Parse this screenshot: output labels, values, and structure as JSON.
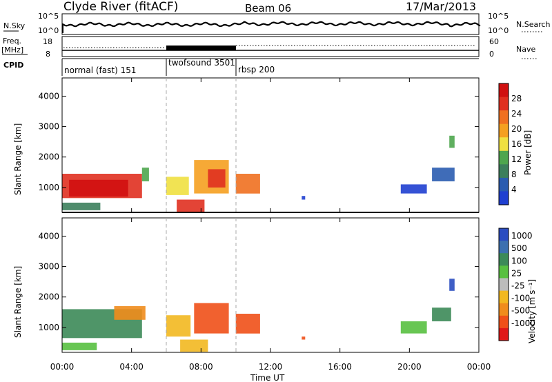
{
  "header": {
    "station": "Clyde River (fitACF)",
    "beam": "Beam 06",
    "date": "17/Mar/2013"
  },
  "noise_panel": {
    "left_label": "N.Sky",
    "right_label": "N.Search",
    "left_ticks": [
      "10^5",
      "10^0"
    ],
    "right_ticks": [
      "10^5",
      "10^0"
    ]
  },
  "freq_panel": {
    "left_label_1": "Freq.",
    "left_label_2": "[MHz]",
    "left_ticks": [
      "18",
      "8"
    ],
    "right_label": "Nave",
    "right_ticks": [
      "60",
      "0"
    ]
  },
  "cpid": {
    "label": "CPID",
    "modes": [
      {
        "name": "normal (fast) 151",
        "start": 0,
        "end": 6
      },
      {
        "name": "twofsound 3501",
        "start": 6,
        "end": 10
      },
      {
        "name": "rbsp 200",
        "start": 10,
        "end": 24
      }
    ]
  },
  "colors": {
    "power": [
      "#1f3fd0",
      "#2a5cb0",
      "#3c7f5c",
      "#4ea64e",
      "#f0e040",
      "#f5a020",
      "#f07020",
      "#e03020",
      "#d01010"
    ],
    "velocity": [
      "#e01818",
      "#f05018",
      "#f08c1c",
      "#f2b820",
      "#bcbcbc",
      "#58c040",
      "#3c8a58",
      "#3c70b0",
      "#2a4cc0"
    ],
    "trace": "#000000",
    "dashed": "#aaaaaa"
  },
  "chart_data": [
    {
      "type": "heatmap",
      "panel": "power",
      "xlabel": "",
      "ylabel": "Slant Range [km]",
      "xlim": [
        0,
        24
      ],
      "ylim": [
        180,
        4600
      ],
      "yticks": [
        "1000",
        "2000",
        "3000",
        "4000"
      ],
      "colorbar_label": "Power [dB]",
      "colorbar_ticks": [
        "4",
        "8",
        "12",
        "16",
        "20",
        "24",
        "28"
      ],
      "patches": [
        {
          "t0": 0.0,
          "t1": 4.6,
          "r0": 650,
          "r1": 1450,
          "level": 7
        },
        {
          "t0": 0.4,
          "t1": 3.8,
          "r0": 700,
          "r1": 1250,
          "level": 8
        },
        {
          "t0": 0.0,
          "t1": 2.2,
          "r0": 250,
          "r1": 500,
          "level": 2
        },
        {
          "t0": 4.6,
          "t1": 5.0,
          "r0": 1200,
          "r1": 1650,
          "level": 3
        },
        {
          "t0": 6.0,
          "t1": 7.3,
          "r0": 750,
          "r1": 1350,
          "level": 4
        },
        {
          "t0": 6.6,
          "t1": 8.2,
          "r0": 200,
          "r1": 600,
          "level": 7
        },
        {
          "t0": 7.6,
          "t1": 9.6,
          "r0": 800,
          "r1": 1900,
          "level": 5
        },
        {
          "t0": 8.4,
          "t1": 9.4,
          "r0": 1000,
          "r1": 1600,
          "level": 7
        },
        {
          "t0": 10.0,
          "t1": 11.4,
          "r0": 800,
          "r1": 1450,
          "level": 6
        },
        {
          "t0": 13.8,
          "t1": 14.0,
          "r0": 600,
          "r1": 720,
          "level": 0
        },
        {
          "t0": 19.5,
          "t1": 21.0,
          "r0": 800,
          "r1": 1100,
          "level": 0
        },
        {
          "t0": 21.3,
          "t1": 22.6,
          "r0": 1200,
          "r1": 1650,
          "level": 1
        },
        {
          "t0": 22.3,
          "t1": 22.6,
          "r0": 2300,
          "r1": 2700,
          "level": 3
        }
      ]
    },
    {
      "type": "heatmap",
      "panel": "velocity",
      "xlabel": "Time UT",
      "ylabel": "Slant Range [km]",
      "xlim": [
        0,
        24
      ],
      "ylim": [
        180,
        4600
      ],
      "xticks": [
        "00:00",
        "04:00",
        "08:00",
        "12:00",
        "16:00",
        "20:00",
        "00:00"
      ],
      "yticks": [
        "1000",
        "2000",
        "3000",
        "4000"
      ],
      "colorbar_label": "Velocity [m s⁻¹]",
      "colorbar_ticks": [
        "1000",
        "500",
        "100",
        "25",
        "-25",
        "-100",
        "-500",
        "-1000"
      ],
      "patches": [
        {
          "t0": 0.0,
          "t1": 4.6,
          "r0": 650,
          "r1": 1600,
          "level": 6
        },
        {
          "t0": 3.0,
          "t1": 4.8,
          "r0": 1250,
          "r1": 1700,
          "level": 2
        },
        {
          "t0": 0.0,
          "t1": 2.0,
          "r0": 250,
          "r1": 500,
          "level": 5
        },
        {
          "t0": 6.0,
          "t1": 7.4,
          "r0": 700,
          "r1": 1400,
          "level": 3
        },
        {
          "t0": 6.8,
          "t1": 8.4,
          "r0": 200,
          "r1": 600,
          "level": 3
        },
        {
          "t0": 7.6,
          "t1": 9.6,
          "r0": 800,
          "r1": 1800,
          "level": 1
        },
        {
          "t0": 10.0,
          "t1": 11.4,
          "r0": 800,
          "r1": 1450,
          "level": 1
        },
        {
          "t0": 13.8,
          "t1": 14.0,
          "r0": 600,
          "r1": 700,
          "level": 1
        },
        {
          "t0": 19.5,
          "t1": 21.0,
          "r0": 800,
          "r1": 1200,
          "level": 5
        },
        {
          "t0": 21.3,
          "t1": 22.4,
          "r0": 1200,
          "r1": 1650,
          "level": 6
        },
        {
          "t0": 22.3,
          "t1": 22.6,
          "r0": 2200,
          "r1": 2600,
          "level": 8
        }
      ]
    }
  ]
}
